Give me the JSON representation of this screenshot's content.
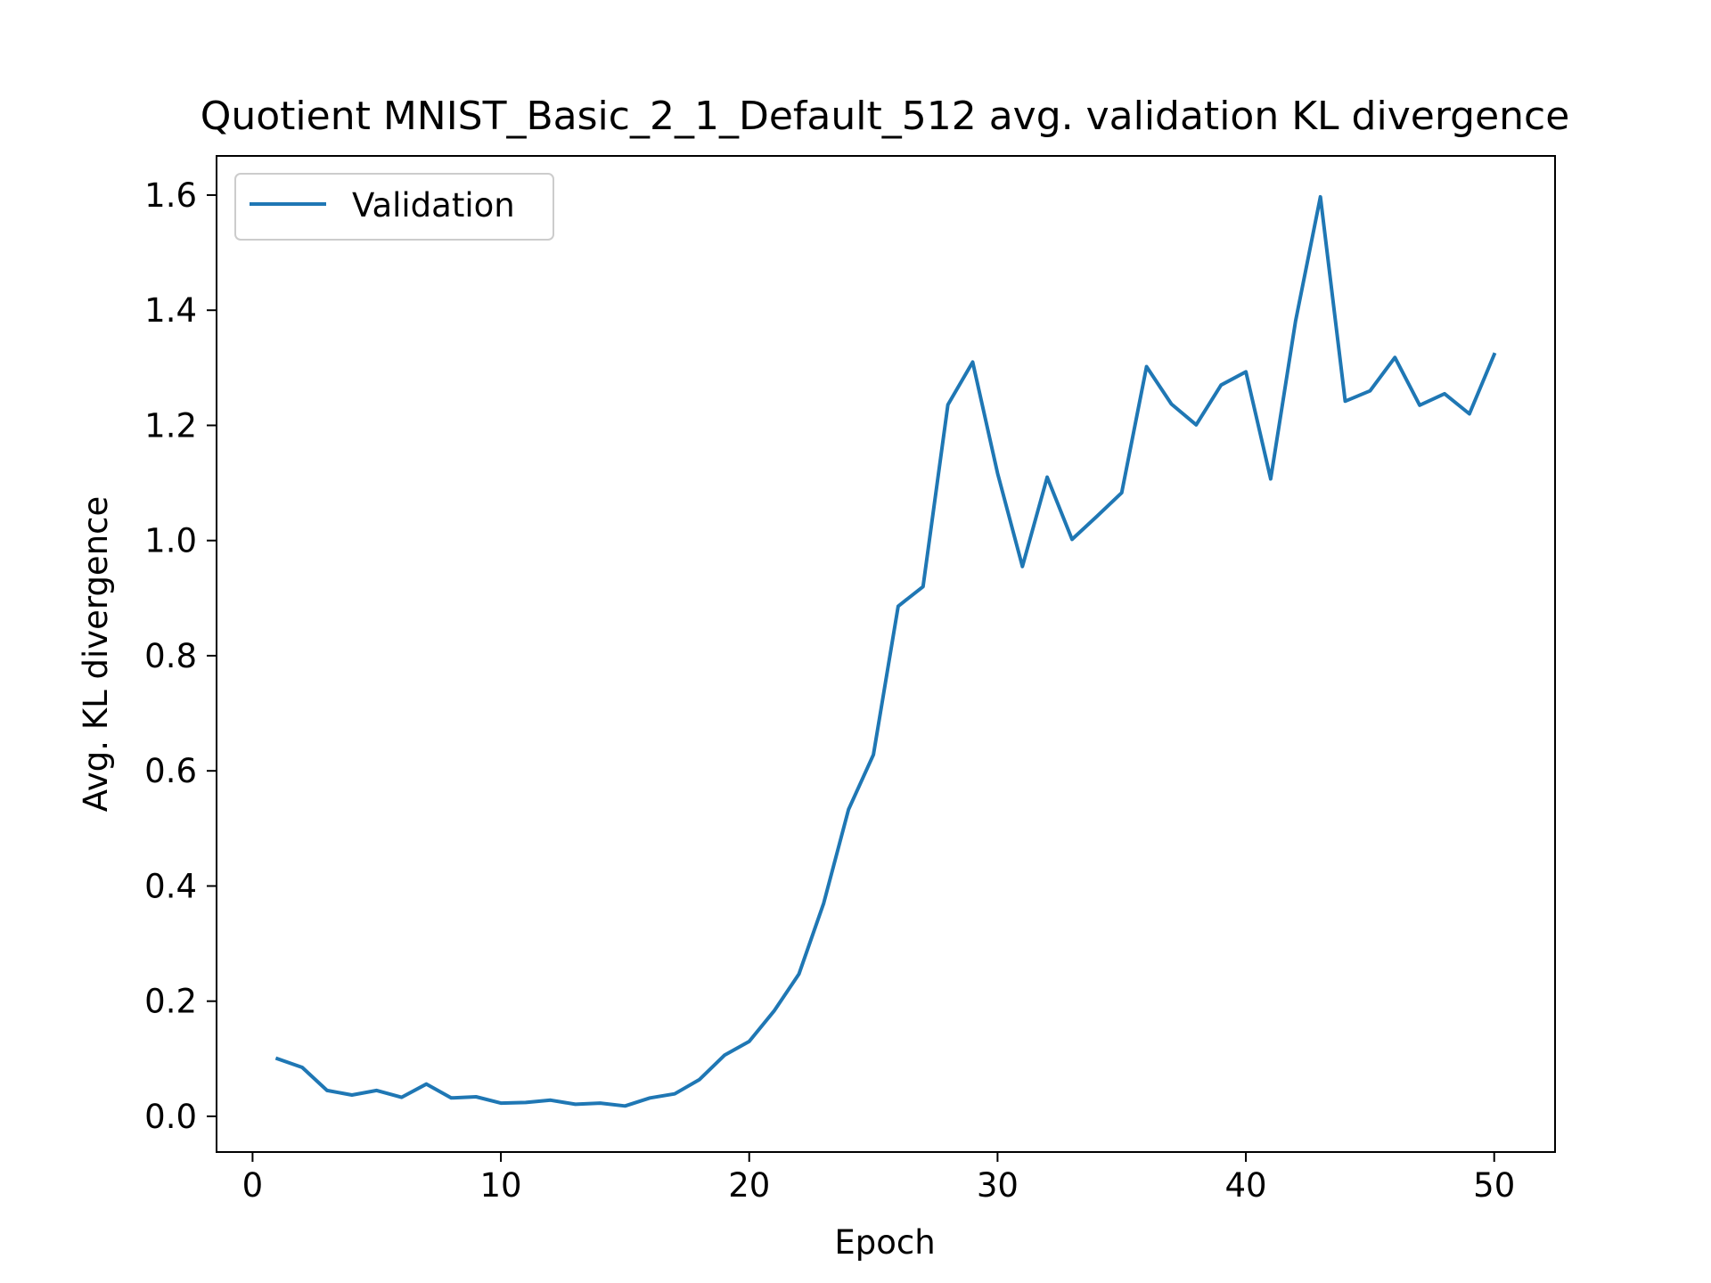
{
  "chart_data": {
    "type": "line",
    "title": "Quotient MNIST_Basic_2_1_Default_512 avg. validation KL divergence",
    "xlabel": "Epoch",
    "ylabel": "Avg. KL divergence",
    "xlim": [
      -1.45,
      52.45
    ],
    "ylim": [
      -0.062,
      1.668
    ],
    "xticks": [
      0,
      10,
      20,
      30,
      40,
      50
    ],
    "yticks": [
      0.0,
      0.2,
      0.4,
      0.6,
      0.8,
      1.0,
      1.2,
      1.4,
      1.6
    ],
    "ytick_labels": [
      "0.0",
      "0.2",
      "0.4",
      "0.6",
      "0.8",
      "1.0",
      "1.2",
      "1.4",
      "1.6"
    ],
    "grid": false,
    "legend": {
      "position": "upper-left"
    },
    "series": [
      {
        "name": "Validation",
        "color": "#1f77b4",
        "x": [
          1,
          2,
          3,
          4,
          5,
          6,
          7,
          8,
          9,
          10,
          11,
          12,
          13,
          14,
          15,
          16,
          17,
          18,
          19,
          20,
          21,
          22,
          23,
          24,
          25,
          26,
          27,
          28,
          29,
          30,
          31,
          32,
          33,
          34,
          35,
          36,
          37,
          38,
          39,
          40,
          41,
          42,
          43,
          44,
          45,
          46,
          47,
          48,
          49,
          50
        ],
        "y": [
          0.1,
          0.085,
          0.045,
          0.037,
          0.045,
          0.033,
          0.056,
          0.032,
          0.034,
          0.023,
          0.024,
          0.028,
          0.021,
          0.023,
          0.018,
          0.032,
          0.039,
          0.064,
          0.106,
          0.13,
          0.183,
          0.247,
          0.37,
          0.533,
          0.628,
          0.886,
          0.92,
          1.236,
          1.31,
          1.117,
          0.955,
          1.11,
          1.002,
          1.042,
          1.083,
          1.302,
          1.237,
          1.201,
          1.27,
          1.293,
          1.107,
          1.381,
          1.597,
          1.242,
          1.26,
          1.318,
          1.235,
          1.255,
          1.22,
          1.323
        ]
      }
    ]
  }
}
